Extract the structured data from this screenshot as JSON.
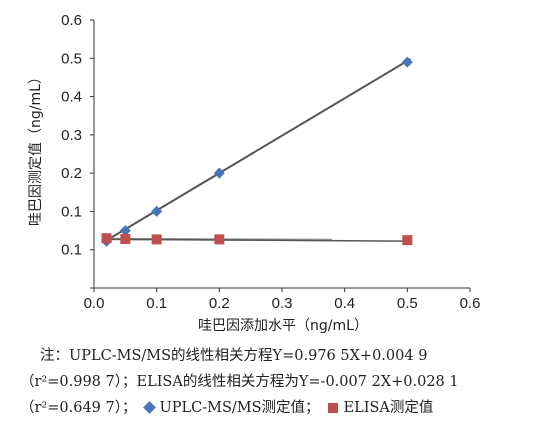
{
  "chart_data": {
    "type": "scatter",
    "xlabel": "哇巴因添加水平（ng/mL）",
    "ylabel": "哇巴因测定值（ng/mL）",
    "xlim": [
      0.0,
      0.6
    ],
    "ylim": [
      -0.1,
      0.6
    ],
    "x_ticks": [
      "0.0",
      "0.1",
      "0.2",
      "0.3",
      "0.4",
      "0.5",
      "0.6"
    ],
    "y_ticks": [
      "0.0",
      "0.1",
      "0.1",
      "0.2",
      "0.3",
      "0.4",
      "0.5",
      "0.6"
    ],
    "grid": false,
    "series": [
      {
        "name": "UPLC-MS/MS测定值",
        "marker": "diamond",
        "color": "#4a73b8",
        "x": [
          0.02,
          0.05,
          0.1,
          0.2,
          0.5
        ],
        "y": [
          0.022,
          0.05,
          0.1,
          0.2,
          0.49
        ],
        "trendline": {
          "slope": 0.9765,
          "intercept": 0.0049
        }
      },
      {
        "name": "ELISA测定值",
        "marker": "square",
        "color": "#c0504d",
        "x": [
          0.02,
          0.05,
          0.1,
          0.2,
          0.5
        ],
        "y": [
          0.03,
          0.028,
          0.027,
          0.027,
          0.025
        ],
        "trendline": {
          "slope": -0.0072,
          "intercept": 0.0281
        }
      }
    ]
  },
  "note": {
    "line1": "注：UPLC-MS/MS的线性相关方程Y=0.976 5X+0.004 9",
    "line2": "（r²=0.998 7）；ELISA的线性相关方程为Y=-0.007 2X+0.028 1",
    "line3_prefix": "（r²=0.649 7）；",
    "legend_uplc": "UPLC-MS/MS测定值；",
    "legend_elisa": "ELISA测定值"
  }
}
